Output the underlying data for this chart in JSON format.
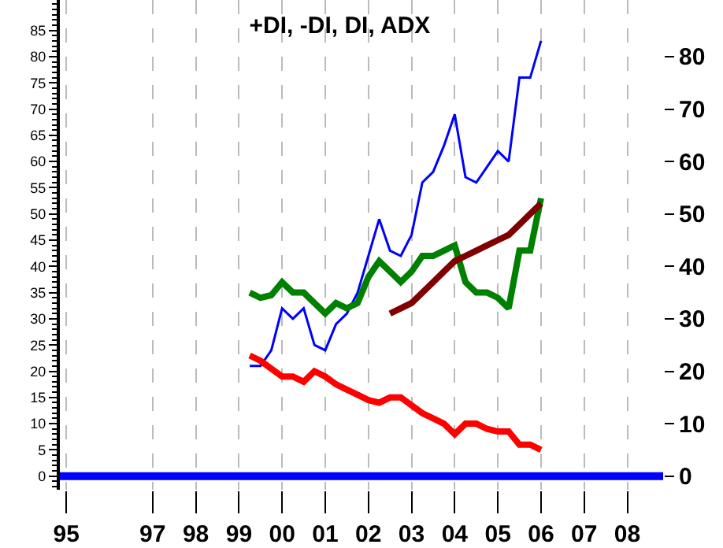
{
  "chart_data": {
    "type": "line",
    "title": "+DI, -DI, DI, ADX",
    "x": [
      1999.25,
      1999.5,
      1999.75,
      2000,
      2000.25,
      2000.5,
      2000.75,
      2001,
      2001.25,
      2001.5,
      2001.75,
      2002,
      2002.25,
      2002.5,
      2002.75,
      2003,
      2003.25,
      2003.5,
      2003.75,
      2004,
      2004.25,
      2004.5,
      2004.75,
      2005,
      2005.25,
      2005.5,
      2005.75,
      2006
    ],
    "series": [
      {
        "color": "#0000ff",
        "values": [
          21,
          21,
          24,
          32,
          30,
          32,
          25,
          24,
          29,
          31,
          35,
          42,
          49,
          43,
          42,
          46,
          56,
          58,
          63,
          69,
          57,
          56,
          59,
          62,
          60,
          76,
          76,
          83
        ]
      },
      {
        "color": "#008000",
        "values": [
          35,
          34,
          34.5,
          37,
          35,
          35,
          33,
          31,
          33,
          32,
          33,
          38,
          41,
          39,
          37,
          39,
          42,
          42,
          43,
          44,
          37,
          35,
          35,
          34,
          32,
          43,
          43,
          53
        ]
      },
      {
        "color": "#ff0000",
        "values": [
          23,
          22,
          20.5,
          19,
          19,
          18,
          20,
          19,
          17.5,
          16.5,
          15.5,
          14.5,
          14,
          15,
          15,
          13.5,
          12,
          11,
          10,
          8,
          10,
          10,
          9,
          8.5,
          8.5,
          6,
          6,
          5
        ]
      },
      {
        "color": "#800000",
        "values": [
          null,
          null,
          null,
          null,
          null,
          null,
          null,
          null,
          null,
          null,
          null,
          null,
          null,
          31,
          32,
          33,
          35,
          37,
          39,
          41,
          42,
          43,
          44,
          45,
          46,
          48,
          50,
          52
        ]
      },
      {
        "color": "#0000ff",
        "x": [
          1994.85,
          2008.83
        ],
        "values": [
          0,
          0
        ]
      }
    ],
    "xlim": [
      1994.85,
      2008.83
    ],
    "xticks": [
      {
        "value": 1995,
        "label": "95"
      },
      {
        "value": 1997,
        "label": "97"
      },
      {
        "value": 1998,
        "label": "98"
      },
      {
        "value": 1999,
        "label": "99"
      },
      {
        "value": 2000,
        "label": "00"
      },
      {
        "value": 2001,
        "label": "01"
      },
      {
        "value": 2002,
        "label": "02"
      },
      {
        "value": 2003,
        "label": "03"
      },
      {
        "value": 2004,
        "label": "04"
      },
      {
        "value": 2005,
        "label": "05"
      },
      {
        "value": 2006,
        "label": "06"
      },
      {
        "value": 2007,
        "label": "07"
      },
      {
        "value": 2008,
        "label": "08"
      }
    ],
    "ylim": [
      -2.6,
      90.8
    ],
    "yticks": [
      0,
      5,
      10,
      15,
      20,
      25,
      30,
      35,
      40,
      45,
      50,
      55,
      60,
      65,
      70,
      75,
      80,
      85
    ],
    "y2lim": [
      -2.6,
      90.8
    ],
    "y2ticks": [
      0,
      10,
      20,
      30,
      40,
      50,
      60,
      70,
      80
    ],
    "grid": "x",
    "marker": "none",
    "line_style": "solid"
  }
}
